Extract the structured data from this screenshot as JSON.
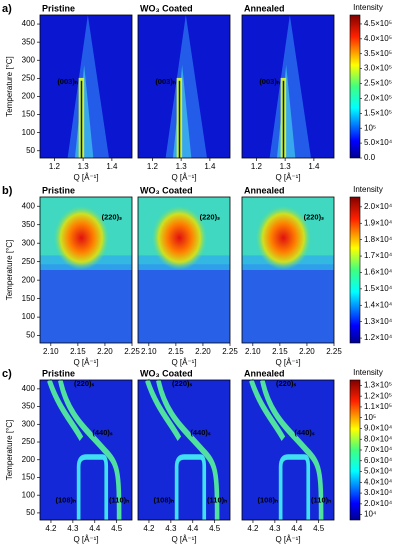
{
  "chart_data": [
    {
      "type": "heatmap",
      "label": "a)",
      "panel_titles": [
        "Pristine",
        "WO₃ Coated",
        "Annealed"
      ],
      "xlabel": "Q [Å⁻¹]",
      "ylabel": "Temperature [°C]",
      "colorbar_label": "Intensity",
      "xlim": [
        1.15,
        1.47
      ],
      "xticks": [
        1.2,
        1.3,
        1.4
      ],
      "ylim": [
        30,
        425
      ],
      "yticks": [
        50,
        100,
        150,
        200,
        250,
        300,
        350,
        400
      ],
      "clim": [
        0,
        480000
      ],
      "cticks": [
        {
          "value": 0,
          "label": "0.0"
        },
        {
          "value": 50000,
          "label": "5.0×10⁴"
        },
        {
          "value": 100000,
          "label": "10⁵"
        },
        {
          "value": 150000,
          "label": "1.5×10⁵"
        },
        {
          "value": 200000,
          "label": "2.0×10⁵"
        },
        {
          "value": 250000,
          "label": "2.5×10⁵"
        },
        {
          "value": 300000,
          "label": "3.0×10⁵"
        },
        {
          "value": 350000,
          "label": "3.5×10⁵"
        },
        {
          "value": 400000,
          "label": "4.0×10⁵"
        },
        {
          "value": 450000,
          "label": "4.5×10⁵"
        }
      ],
      "annotations": [
        "(003)ₕ"
      ]
    },
    {
      "type": "heatmap",
      "label": "b)",
      "panel_titles": [
        "Pristine",
        "WO₃ Coated",
        "Annealed"
      ],
      "xlabel": "Q [Å⁻¹]",
      "ylabel": "Temperature [°C]",
      "colorbar_label": "Intensity",
      "xlim": [
        2.08,
        2.25
      ],
      "xticks": [
        {
          "value": 2.1,
          "label": "2.10"
        },
        {
          "value": 2.15,
          "label": "2.15"
        },
        {
          "value": 2.2,
          "label": "2.20"
        },
        {
          "value": 2.25,
          "label": "2.25"
        }
      ],
      "ylim": [
        30,
        425
      ],
      "yticks": [
        50,
        100,
        150,
        200,
        250,
        300,
        350,
        400
      ],
      "clim": [
        11700,
        20600
      ],
      "cticks": [
        {
          "value": 12000,
          "label": "1.2×10⁴"
        },
        {
          "value": 13000,
          "label": "1.3×10⁴"
        },
        {
          "value": 14000,
          "label": "1.4×10⁴"
        },
        {
          "value": 15000,
          "label": "1.5×10⁴"
        },
        {
          "value": 16000,
          "label": "1.6×10⁴"
        },
        {
          "value": 17000,
          "label": "1.7×10⁴"
        },
        {
          "value": 18000,
          "label": "1.8×10⁴"
        },
        {
          "value": 19000,
          "label": "1.9×10⁴"
        },
        {
          "value": 20000,
          "label": "2.0×10⁴"
        }
      ],
      "annotations": [
        "(220)ₛ"
      ]
    },
    {
      "type": "heatmap",
      "label": "c)",
      "panel_titles": [
        "Pristine",
        "WO₃ Coated",
        "Annealed"
      ],
      "xlabel": "Q [Å⁻¹]",
      "ylabel": "Temperature [°C]",
      "colorbar_label": "Intensity",
      "xlim": [
        4.15,
        4.57
      ],
      "xticks": [
        4.2,
        4.3,
        4.4,
        4.5
      ],
      "ylim": [
        30,
        425
      ],
      "yticks": [
        50,
        100,
        150,
        200,
        250,
        300,
        350,
        400
      ],
      "clim": [
        5000,
        135000
      ],
      "cticks": [
        {
          "value": 10000,
          "label": "10⁴"
        },
        {
          "value": 20000,
          "label": "2.0×10⁴"
        },
        {
          "value": 30000,
          "label": "3.0×10⁴"
        },
        {
          "value": 40000,
          "label": "4.0×10⁴"
        },
        {
          "value": 50000,
          "label": "5.0×10⁴"
        },
        {
          "value": 60000,
          "label": "6.0×10⁴"
        },
        {
          "value": 70000,
          "label": "7.0×10⁴"
        },
        {
          "value": 80000,
          "label": "8.0×10⁴"
        },
        {
          "value": 90000,
          "label": "9.0×10⁴"
        },
        {
          "value": 100000,
          "label": "10⁵"
        },
        {
          "value": 110000,
          "label": "1.1×10⁵"
        },
        {
          "value": 120000,
          "label": "1.2×10⁵"
        },
        {
          "value": 130000,
          "label": "1.3×10⁵"
        }
      ],
      "annotations": [
        "(220)ₛ",
        "(440)ₛ",
        "(108)ₕ",
        "(110)ₕ"
      ]
    }
  ]
}
